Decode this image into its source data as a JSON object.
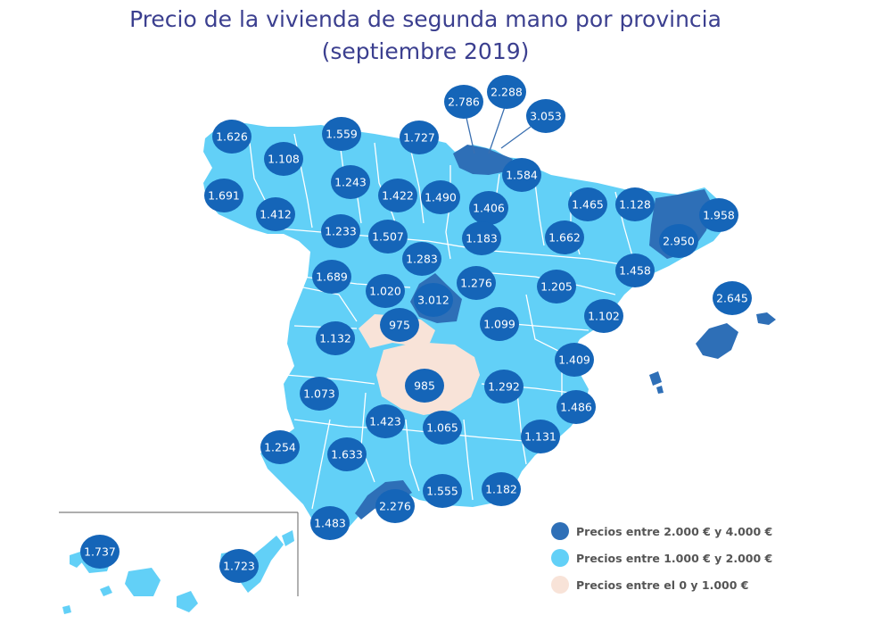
{
  "title": {
    "line1": "Precio de la vivienda de segunda mano por provincia",
    "line2": "(septiembre 2019)"
  },
  "colors": {
    "high": "#2e6fb7",
    "mid": "#62d0f7",
    "low": "#f8e3d8",
    "bubble": "#1565b8",
    "bubble_text": "#ffffff",
    "title": "#3b3f8f",
    "province_border": "#ffffff"
  },
  "legend": [
    {
      "label": "Precios entre 2.000 € y 4.000 €",
      "color": "#2e6fb7"
    },
    {
      "label": "Precios entre 1.000 € y 2.000 €",
      "color": "#62d0f7"
    },
    {
      "label": "Precios entre el 0 y 1.000 €",
      "color": "#f8e3d8"
    }
  ],
  "price_labels": [
    "1.626",
    "1.559",
    "1.727",
    "2.786",
    "2.288",
    "3.053",
    "1.108",
    "1.243",
    "1.422",
    "1.490",
    "1.584",
    "1.691",
    "1.412",
    "1.406",
    "1.465",
    "1.128",
    "1.958",
    "1.233",
    "1.507",
    "1.183",
    "1.662",
    "2.950",
    "1.283",
    "1.458",
    "1.689",
    "1.020",
    "3.012",
    "1.276",
    "1.205",
    "975",
    "1.099",
    "1.102",
    "2.645",
    "1.132",
    "1.409",
    "1.073",
    "985",
    "1.292",
    "1.486",
    "1.423",
    "1.065",
    "1.131",
    "1.254",
    "1.633",
    "2.276",
    "1.555",
    "1.182",
    "1.483",
    "1.737",
    "1.723"
  ]
}
